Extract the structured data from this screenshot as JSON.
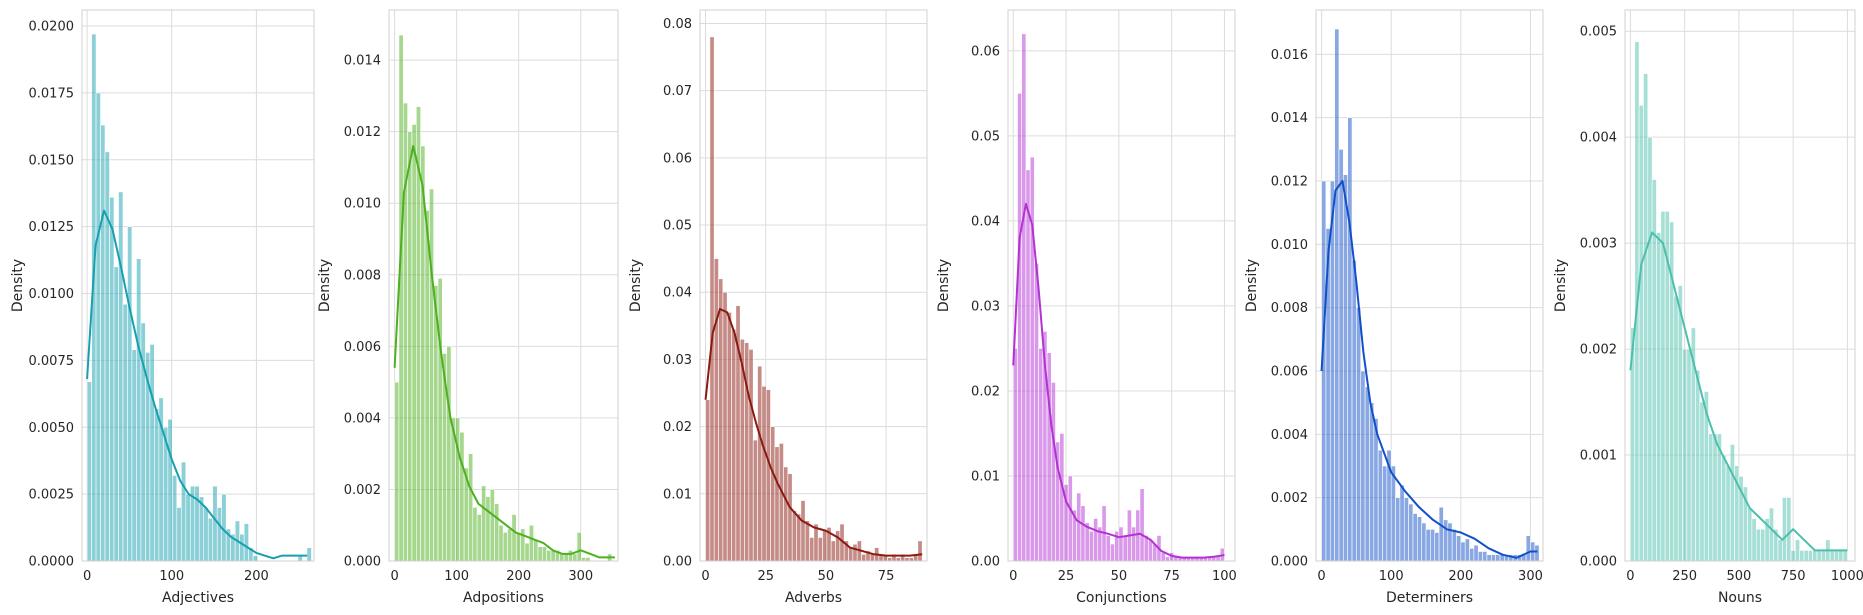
{
  "chart_data": [
    {
      "type": "histogram",
      "xlabel": "Adjectives",
      "ylabel": "Density",
      "color": "#17a0b0",
      "xlim": [
        -6,
        268
      ],
      "ylim": [
        0,
        0.0206
      ],
      "xticks": [
        0,
        100,
        200
      ],
      "yticks": [
        0,
        0.0025,
        0.005,
        0.0075,
        0.01,
        0.0125,
        0.015,
        0.0175,
        0.02
      ],
      "ytick_labels": [
        "0.0000",
        "0.0025",
        "0.0050",
        "0.0075",
        "0.0100",
        "0.0125",
        "0.0150",
        "0.0175",
        "0.0200"
      ],
      "bin_width": 5.3,
      "bin_start": 0,
      "bin_densities": [
        0.0067,
        0.0197,
        0.0175,
        0.0163,
        0.0153,
        0.0136,
        0.011,
        0.0138,
        0.0096,
        0.0125,
        0.0079,
        0.0113,
        0.0089,
        0.0078,
        0.0081,
        0.0057,
        0.0061,
        0.005,
        0.0053,
        0.0032,
        0.002,
        0.0037,
        0.0025,
        0.0028,
        0.0028,
        0.0024,
        0.002,
        0.0016,
        0.0028,
        0.002,
        0.0025,
        0.0012,
        0.001,
        0.0015,
        0.001,
        0.0014,
        0.0005,
        0.0002,
        0,
        0,
        0,
        0,
        0,
        0,
        0,
        0,
        0,
        0.0002,
        0,
        0.0005
      ],
      "kde_x": [
        0,
        10,
        20,
        30,
        40,
        50,
        60,
        70,
        80,
        90,
        100,
        110,
        120,
        130,
        140,
        150,
        160,
        170,
        180,
        190,
        200,
        210,
        220,
        230,
        240,
        250,
        260
      ],
      "kde_y": [
        0.0068,
        0.0118,
        0.0131,
        0.0124,
        0.011,
        0.0095,
        0.0081,
        0.0069,
        0.0058,
        0.0048,
        0.0038,
        0.003,
        0.0025,
        0.0023,
        0.002,
        0.0016,
        0.0012,
        0.0009,
        0.0007,
        0.0005,
        0.0003,
        0.0002,
        0.0001,
        0.0002,
        0.0002,
        0.0002,
        0.0002
      ]
    },
    {
      "type": "histogram",
      "xlabel": "Adpositions",
      "ylabel": "Density",
      "color": "#4db01e",
      "xlim": [
        -9,
        360
      ],
      "ylim": [
        0,
        0.0154
      ],
      "xticks": [
        0,
        100,
        200,
        300
      ],
      "yticks": [
        0,
        0.002,
        0.004,
        0.006,
        0.008,
        0.01,
        0.012,
        0.014
      ],
      "ytick_labels": [
        "0.000",
        "0.002",
        "0.004",
        "0.006",
        "0.008",
        "0.010",
        "0.012",
        "0.014"
      ],
      "bin_width": 7.0,
      "bin_start": 0,
      "bin_densities": [
        0.005,
        0.0147,
        0.0128,
        0.012,
        0.0122,
        0.0127,
        0.0116,
        0.0098,
        0.0104,
        0.0077,
        0.0079,
        0.0058,
        0.006,
        0.004,
        0.004,
        0.0036,
        0.0026,
        0.003,
        0.0015,
        0.0013,
        0.0021,
        0.0018,
        0.002,
        0.0016,
        0.001,
        0.0008,
        0.0009,
        0.0013,
        0.0008,
        0.0009,
        0.0005,
        0.001,
        0.0006,
        0.0004,
        0.0004,
        0.0003,
        0.0003,
        0.0003,
        0.0002,
        0.0002,
        0.0003,
        0.0002,
        0.0008,
        0.0001,
        0.0001,
        0,
        0,
        0,
        0,
        0.0002
      ],
      "kde_x": [
        0,
        15,
        30,
        45,
        60,
        75,
        90,
        105,
        120,
        135,
        150,
        165,
        180,
        195,
        210,
        225,
        240,
        255,
        270,
        285,
        300,
        315,
        330,
        345,
        355
      ],
      "kde_y": [
        0.0054,
        0.0103,
        0.0116,
        0.0105,
        0.008,
        0.0058,
        0.004,
        0.0029,
        0.0021,
        0.0016,
        0.0014,
        0.0012,
        0.001,
        0.0008,
        0.0007,
        0.0006,
        0.0005,
        0.0003,
        0.0002,
        0.0002,
        0.0003,
        0.0002,
        0.0001,
        0.0001,
        0.0001
      ]
    },
    {
      "type": "histogram",
      "xlabel": "Adverbs",
      "ylabel": "Density",
      "color": "#8b1a10",
      "xlim": [
        -2.3,
        92
      ],
      "ylim": [
        0,
        0.082
      ],
      "xticks": [
        0,
        25,
        50,
        75
      ],
      "yticks": [
        0,
        0.01,
        0.02,
        0.03,
        0.04,
        0.05,
        0.06,
        0.07,
        0.08
      ],
      "ytick_labels": [
        "0.00",
        "0.01",
        "0.02",
        "0.03",
        "0.04",
        "0.05",
        "0.06",
        "0.07",
        "0.08"
      ],
      "bin_width": 1.8,
      "bin_start": 0,
      "bin_densities": [
        0.024,
        0.078,
        0.045,
        0.042,
        0.04,
        0.037,
        0.0345,
        0.038,
        0.033,
        0.0325,
        0.0315,
        0.018,
        0.029,
        0.026,
        0.0255,
        0.02,
        0.017,
        0.0175,
        0.014,
        0.013,
        0.0075,
        0.007,
        0.009,
        0.006,
        0.0035,
        0.0055,
        0.0035,
        0.0045,
        0.005,
        0.003,
        0.0045,
        0.0055,
        0.003,
        0.002,
        0.0025,
        0.003,
        0.001,
        0.0015,
        0.001,
        0.002,
        0.001,
        0.001,
        0.0005,
        0.001,
        0.0005,
        0.001,
        0.0005,
        0.0005,
        0.001,
        0.003
      ],
      "kde_x": [
        0,
        3,
        6,
        9,
        12,
        15,
        18,
        21,
        24,
        27,
        30,
        35,
        40,
        45,
        50,
        55,
        60,
        65,
        70,
        75,
        80,
        85,
        90
      ],
      "kde_y": [
        0.024,
        0.034,
        0.0375,
        0.037,
        0.034,
        0.0295,
        0.0245,
        0.0205,
        0.017,
        0.014,
        0.0115,
        0.008,
        0.006,
        0.005,
        0.0045,
        0.0035,
        0.002,
        0.0015,
        0.001,
        0.0008,
        0.0008,
        0.0008,
        0.001
      ]
    },
    {
      "type": "histogram",
      "xlabel": "Conjunctions",
      "ylabel": "Density",
      "color": "#b431d4",
      "xlim": [
        -2.5,
        105
      ],
      "ylim": [
        0,
        0.0648
      ],
      "xticks": [
        0,
        25,
        50,
        75,
        100
      ],
      "yticks": [
        0,
        0.01,
        0.02,
        0.03,
        0.04,
        0.05,
        0.06
      ],
      "ytick_labels": [
        "0.00",
        "0.01",
        "0.02",
        "0.03",
        "0.04",
        "0.05",
        "0.06"
      ],
      "bin_width": 2.0,
      "bin_start": 0,
      "bin_densities": [
        0.025,
        0.055,
        0.062,
        0.046,
        0.0475,
        0.035,
        0.025,
        0.027,
        0.0245,
        0.021,
        0.014,
        0.015,
        0.009,
        0.01,
        0.006,
        0.008,
        0.0065,
        0.0045,
        0.0035,
        0.005,
        0.004,
        0.0065,
        0.003,
        0.002,
        0.0035,
        0.004,
        0.003,
        0.006,
        0.004,
        0.006,
        0.0085,
        0.003,
        0.0025,
        0.002,
        0.003,
        0.001,
        0.0005,
        0.001,
        0.0005,
        0.0005,
        0.0005,
        0.0005,
        0.0005,
        0.0005,
        0.0005,
        0.0005,
        0.0005,
        0.0005,
        0.0005,
        0.0015
      ],
      "kde_x": [
        0,
        3,
        6,
        9,
        12,
        15,
        18,
        21,
        25,
        30,
        35,
        40,
        45,
        50,
        55,
        60,
        65,
        70,
        75,
        80,
        85,
        90,
        95,
        100
      ],
      "kde_y": [
        0.023,
        0.038,
        0.042,
        0.0395,
        0.032,
        0.023,
        0.016,
        0.011,
        0.007,
        0.0048,
        0.004,
        0.0035,
        0.0032,
        0.0028,
        0.003,
        0.0032,
        0.0025,
        0.0012,
        0.0006,
        0.0004,
        0.0004,
        0.0004,
        0.0005,
        0.0007
      ]
    },
    {
      "type": "histogram",
      "xlabel": "Determiners",
      "ylabel": "Density",
      "color": "#1150c8",
      "xlim": [
        -8,
        318
      ],
      "ylim": [
        0,
        0.0174
      ],
      "xticks": [
        0,
        100,
        200,
        300
      ],
      "yticks": [
        0,
        0.002,
        0.004,
        0.006,
        0.008,
        0.01,
        0.012,
        0.014,
        0.016
      ],
      "ytick_labels": [
        "0.000",
        "0.002",
        "0.004",
        "0.006",
        "0.008",
        "0.010",
        "0.012",
        "0.014",
        "0.016"
      ],
      "bin_width": 6.25,
      "bin_start": 0,
      "bin_densities": [
        0.012,
        0.0105,
        0.012,
        0.0168,
        0.013,
        0.0122,
        0.014,
        0.0095,
        0.008,
        0.006,
        0.0055,
        0.005,
        0.0045,
        0.0035,
        0.003,
        0.0035,
        0.003,
        0.002,
        0.0024,
        0.002,
        0.0018,
        0.0015,
        0.0014,
        0.0012,
        0.001,
        0.001,
        0.0009,
        0.0017,
        0.0013,
        0.0012,
        0.001,
        0.0008,
        0.0006,
        0.0007,
        0.0004,
        0.0005,
        0.0003,
        0.0003,
        0.0002,
        0.0002,
        0.0002,
        0.0002,
        0.0002,
        0.0002,
        0.0002,
        0.0002,
        0.0002,
        0.0008,
        0.0006,
        0.0005
      ],
      "kde_x": [
        0,
        10,
        20,
        30,
        40,
        50,
        60,
        70,
        80,
        90,
        100,
        120,
        140,
        160,
        180,
        200,
        220,
        240,
        260,
        280,
        300,
        310
      ],
      "kde_y": [
        0.006,
        0.0098,
        0.0117,
        0.012,
        0.0107,
        0.0088,
        0.0066,
        0.005,
        0.004,
        0.0034,
        0.0028,
        0.0022,
        0.0017,
        0.0013,
        0.001,
        0.0009,
        0.0007,
        0.0004,
        0.0002,
        0.0001,
        0.0003,
        0.0003
      ]
    },
    {
      "type": "histogram",
      "xlabel": "Nouns",
      "ylabel": "Density",
      "color": "#4dbfac",
      "xlim": [
        -25,
        1035
      ],
      "ylim": [
        0,
        0.0052
      ],
      "xticks": [
        0,
        250,
        500,
        750,
        1000
      ],
      "yticks": [
        0,
        0.001,
        0.002,
        0.003,
        0.004,
        0.005
      ],
      "ytick_labels": [
        "0.000",
        "0.001",
        "0.002",
        "0.003",
        "0.004",
        "0.005"
      ],
      "bin_width": 20,
      "bin_start": 0,
      "bin_densities": [
        0.0022,
        0.0049,
        0.0043,
        0.0046,
        0.004,
        0.0036,
        0.0031,
        0.0033,
        0.0033,
        0.0032,
        0.0025,
        0.0026,
        0.002,
        0.002,
        0.0022,
        0.0018,
        0.0015,
        0.0016,
        0.0012,
        0.0012,
        0.0012,
        0.001,
        0.0009,
        0.0011,
        0.0009,
        0.0008,
        0.0007,
        0.0005,
        0.0004,
        0.0003,
        0.0003,
        0.0004,
        0.0005,
        0.0003,
        0.0002,
        0.0006,
        0.0006,
        0.0001,
        0.0002,
        0.0001,
        0.0001,
        0.0001,
        0.0001,
        0.0001,
        0.0001,
        0.0002,
        0.0001,
        0.0001,
        0.0001,
        0.0001
      ],
      "kde_x": [
        0,
        50,
        100,
        150,
        200,
        250,
        300,
        350,
        400,
        450,
        500,
        550,
        600,
        650,
        700,
        750,
        800,
        850,
        900,
        950,
        1000
      ],
      "kde_y": [
        0.0018,
        0.0028,
        0.0031,
        0.003,
        0.0026,
        0.0022,
        0.0018,
        0.0014,
        0.0011,
        0.0009,
        0.0007,
        0.0005,
        0.0004,
        0.0003,
        0.0002,
        0.0003,
        0.0002,
        0.0001,
        0.0001,
        0.0001,
        0.0001
      ]
    }
  ]
}
